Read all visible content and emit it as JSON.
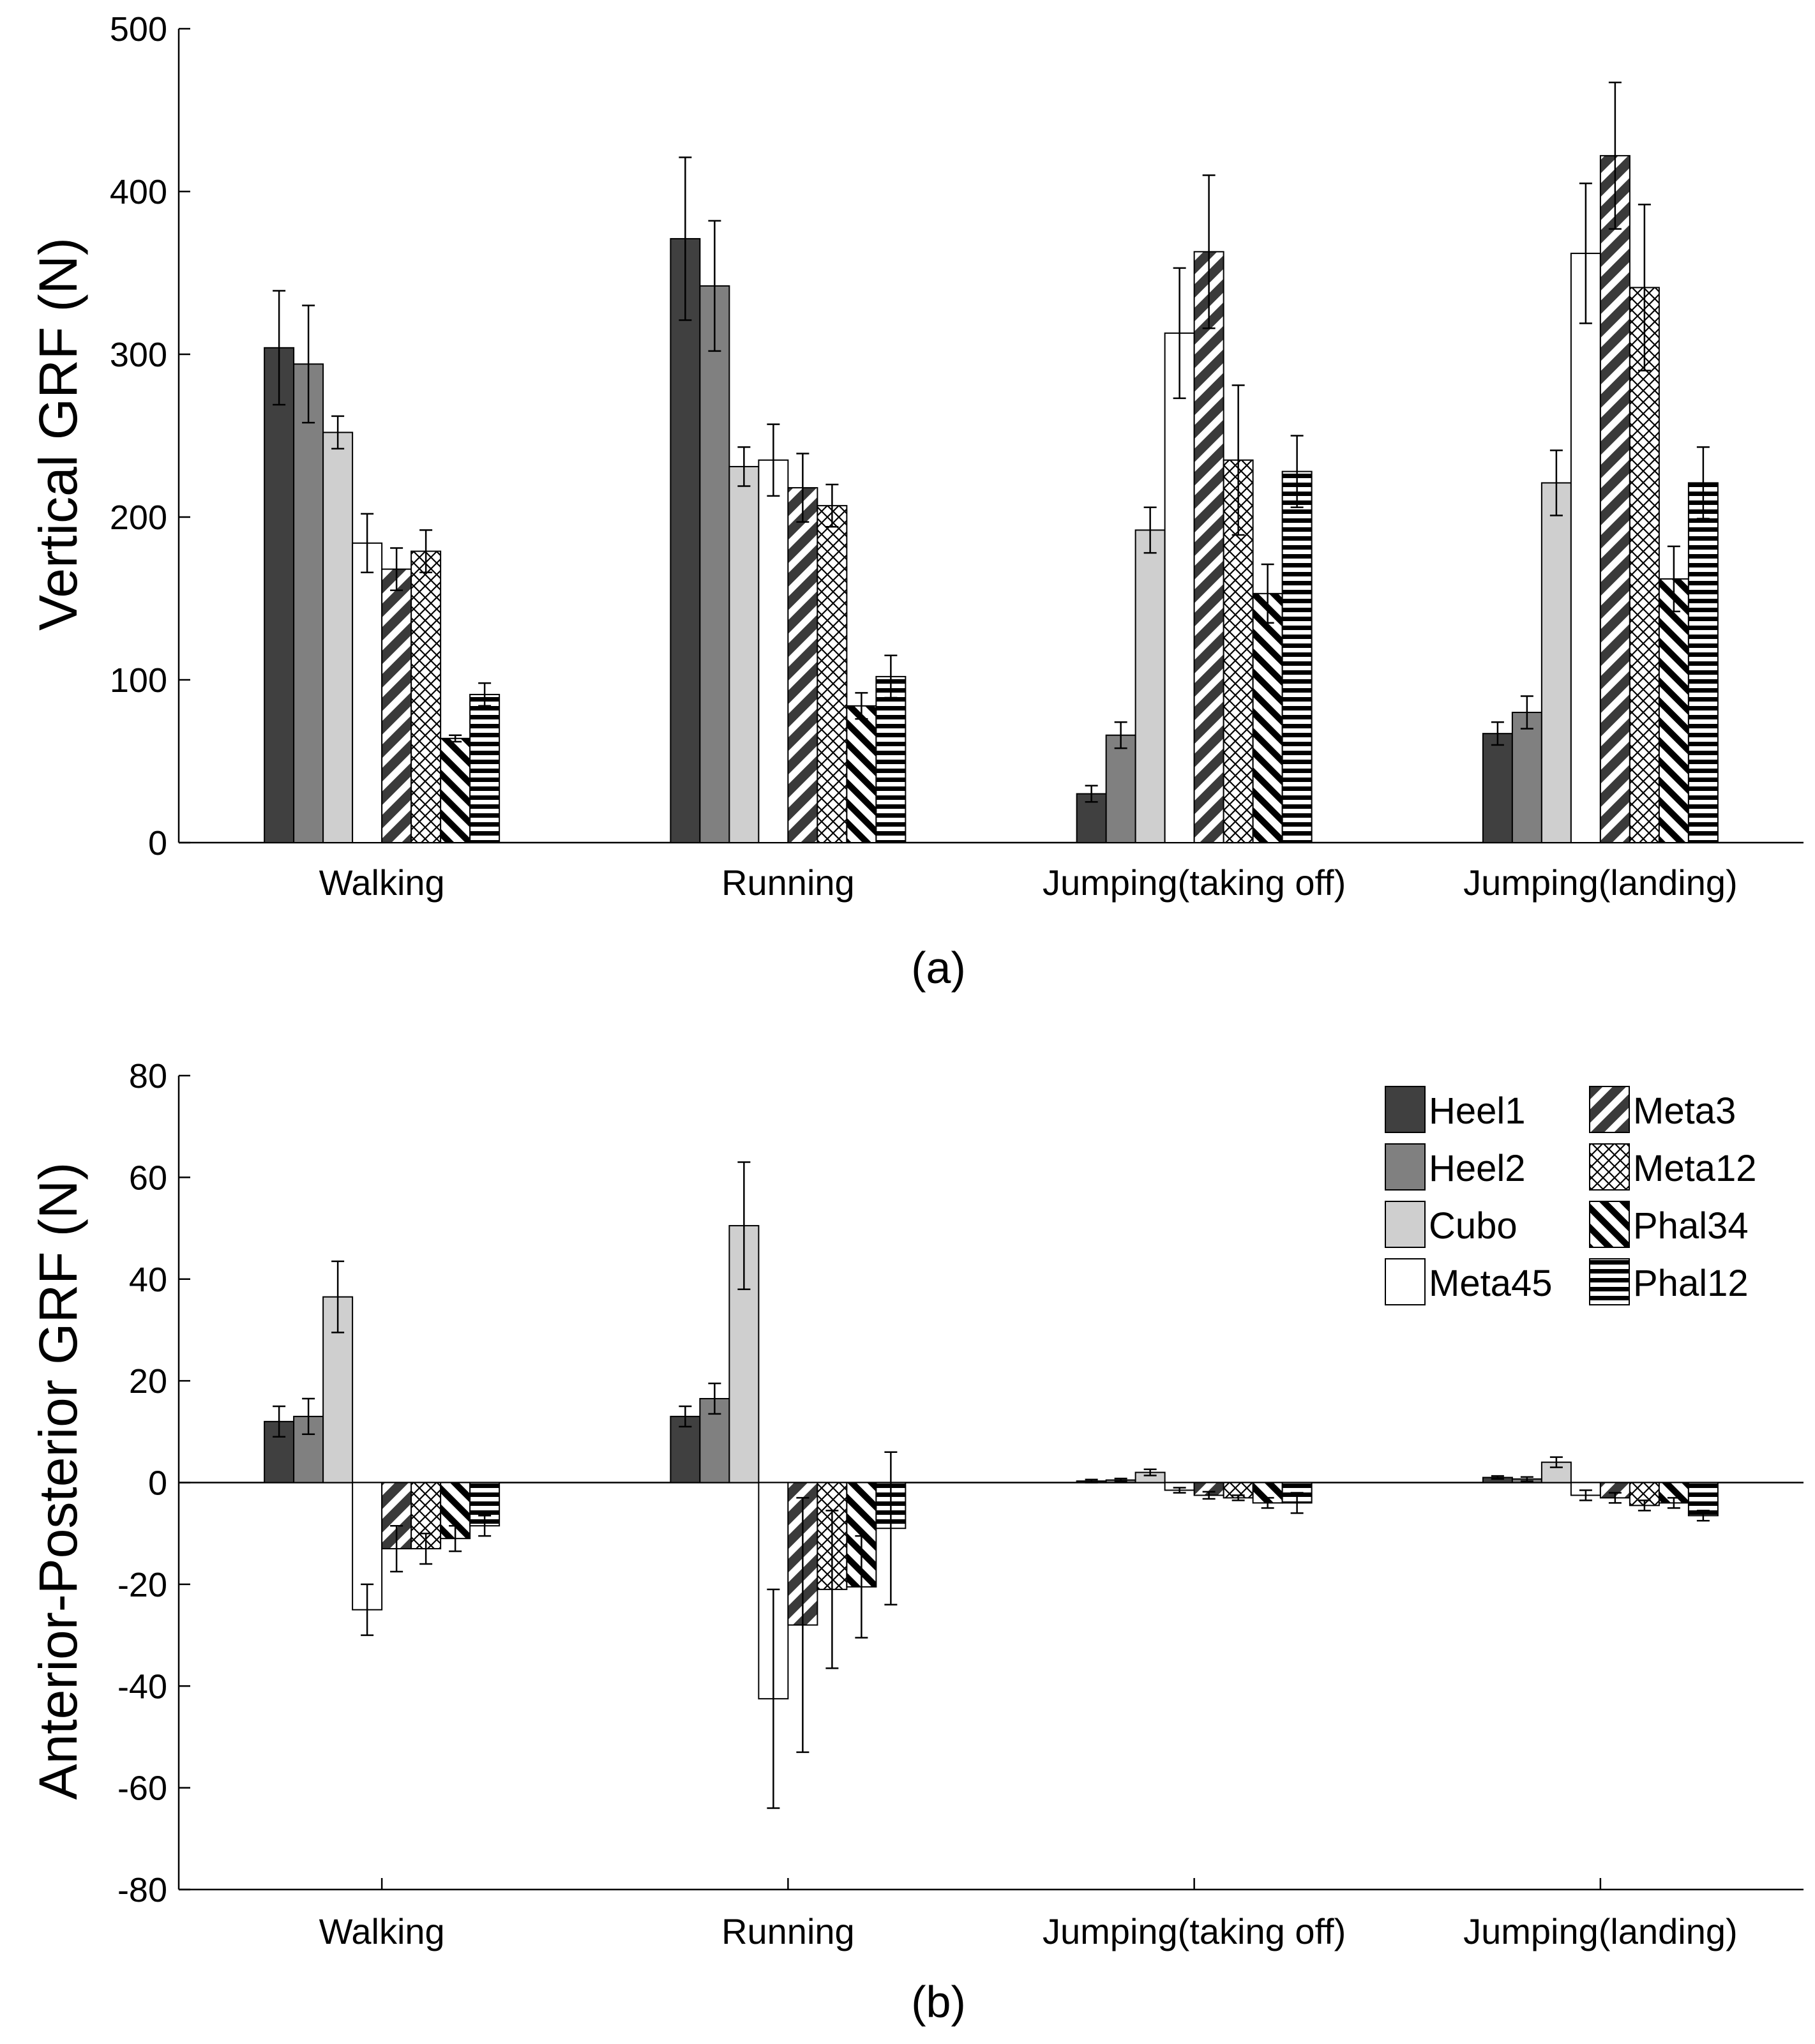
{
  "figure": {
    "series": [
      {
        "name": "Heel1",
        "fill": "#404040",
        "pattern": "solid"
      },
      {
        "name": "Heel2",
        "fill": "#808080",
        "pattern": "solid"
      },
      {
        "name": "Cubo",
        "fill": "#cfcfcf",
        "pattern": "solid"
      },
      {
        "name": "Meta45",
        "fill": "#ffffff",
        "pattern": "solid"
      },
      {
        "name": "Meta3",
        "fill": "#ffffff",
        "pattern": "wide-diagonal"
      },
      {
        "name": "Meta12",
        "fill": "#ffffff",
        "pattern": "crosshatch"
      },
      {
        "name": "Phal34",
        "fill": "#ffffff",
        "pattern": "diagonal"
      },
      {
        "name": "Phal12",
        "fill": "#ffffff",
        "pattern": "horizontal"
      }
    ],
    "legend_location": "top-right of panel (b)"
  },
  "chart_data": [
    {
      "type": "bar",
      "panel_label": "(a)",
      "title": "",
      "xlabel": "",
      "ylabel": "Vertical GRF (N)",
      "ylim": [
        0,
        500
      ],
      "yticks": [
        "0",
        "100",
        "200",
        "300",
        "400",
        "500"
      ],
      "yticks_values": [
        0,
        100,
        200,
        300,
        400,
        500
      ],
      "categories": [
        "Walking",
        "Running",
        "Jumping(taking off)",
        "Jumping(landing)"
      ],
      "series": [
        {
          "name": "Heel1",
          "values": [
            304,
            371,
            30,
            67
          ],
          "errors": [
            35,
            50,
            5,
            7
          ]
        },
        {
          "name": "Heel2",
          "values": [
            294,
            342,
            66,
            80
          ],
          "errors": [
            36,
            40,
            8,
            10
          ]
        },
        {
          "name": "Cubo",
          "values": [
            252,
            231,
            192,
            221
          ],
          "errors": [
            10,
            12,
            14,
            20
          ]
        },
        {
          "name": "Meta45",
          "values": [
            184,
            235,
            313,
            362
          ],
          "errors": [
            18,
            22,
            40,
            43
          ]
        },
        {
          "name": "Meta3",
          "values": [
            168,
            218,
            363,
            422
          ],
          "errors": [
            13,
            21,
            47,
            45
          ]
        },
        {
          "name": "Meta12",
          "values": [
            179,
            207,
            235,
            341
          ],
          "errors": [
            13,
            13,
            46,
            51
          ]
        },
        {
          "name": "Phal34",
          "values": [
            64,
            84,
            153,
            162
          ],
          "errors": [
            2,
            8,
            18,
            20
          ]
        },
        {
          "name": "Phal12",
          "values": [
            91,
            102,
            228,
            221
          ],
          "errors": [
            7,
            13,
            22,
            22
          ]
        }
      ]
    },
    {
      "type": "bar",
      "panel_label": "(b)",
      "title": "",
      "xlabel": "",
      "ylabel": "Anterior-Posterior GRF (N)",
      "ylim": [
        -80,
        80
      ],
      "yticks": [
        "-80",
        "-60",
        "-40",
        "-20",
        "0",
        "20",
        "40",
        "60",
        "80"
      ],
      "yticks_values": [
        -80,
        -60,
        -40,
        -20,
        0,
        20,
        40,
        60,
        80
      ],
      "categories": [
        "Walking",
        "Running",
        "Jumping(taking off)",
        "Jumping(landing)"
      ],
      "series": [
        {
          "name": "Heel1",
          "values": [
            12,
            13,
            0.3,
            1
          ],
          "errors": [
            3,
            2,
            0.3,
            0.3
          ]
        },
        {
          "name": "Heel2",
          "values": [
            13,
            16.5,
            0.5,
            0.7
          ],
          "errors": [
            3.5,
            3,
            0.3,
            0.4
          ]
        },
        {
          "name": "Cubo",
          "values": [
            36.5,
            50.5,
            2,
            4
          ],
          "errors": [
            7,
            12.5,
            0.6,
            1
          ]
        },
        {
          "name": "Meta45",
          "values": [
            -25,
            -42.5,
            -1.5,
            -2.5
          ],
          "errors": [
            5,
            21.5,
            0.5,
            1
          ]
        },
        {
          "name": "Meta3",
          "values": [
            -13,
            -28,
            -2.5,
            -3
          ],
          "errors": [
            4.5,
            25,
            0.7,
            1
          ]
        },
        {
          "name": "Meta12",
          "values": [
            -13,
            -21,
            -3,
            -4.5
          ],
          "errors": [
            3,
            15.5,
            0.5,
            1
          ]
        },
        {
          "name": "Phal34",
          "values": [
            -11,
            -20.5,
            -4,
            -4
          ],
          "errors": [
            2.5,
            10,
            1,
            1
          ]
        },
        {
          "name": "Phal12",
          "values": [
            -8.5,
            -9,
            -4,
            -6.5
          ],
          "errors": [
            2,
            15,
            2,
            1
          ]
        }
      ]
    }
  ]
}
